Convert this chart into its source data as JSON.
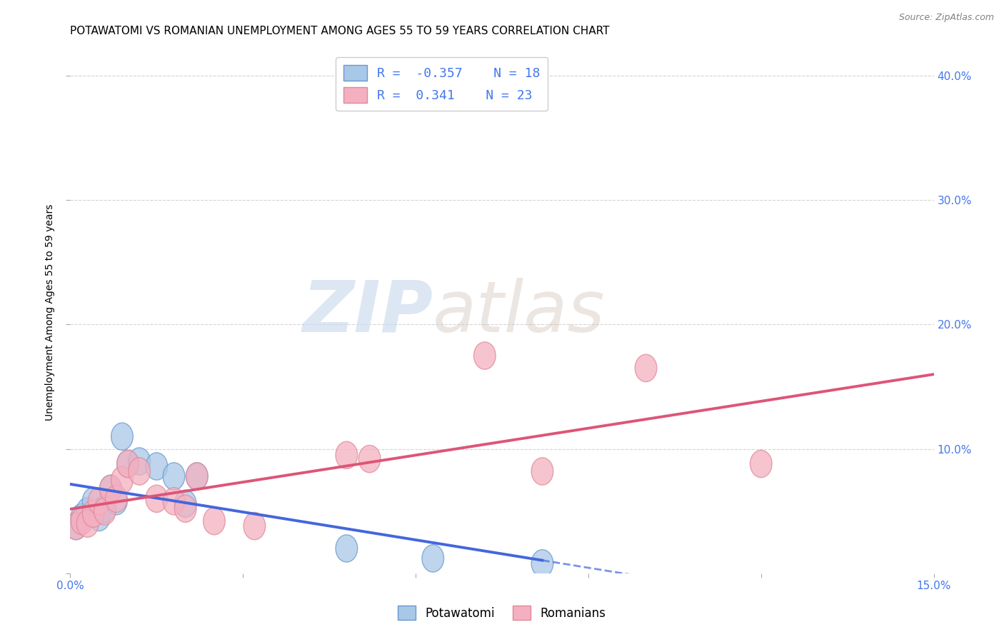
{
  "title": "POTAWATOMI VS ROMANIAN UNEMPLOYMENT AMONG AGES 55 TO 59 YEARS CORRELATION CHART",
  "source": "Source: ZipAtlas.com",
  "ylabel": "Unemployment Among Ages 55 to 59 years",
  "xlim": [
    0.0,
    0.15
  ],
  "ylim": [
    0.0,
    0.42
  ],
  "xtick_positions": [
    0.0,
    0.03,
    0.06,
    0.09,
    0.12,
    0.15
  ],
  "xtick_show": [
    0.0,
    0.15
  ],
  "xticklabels_show": [
    "0.0%",
    "15.0%"
  ],
  "yticks_right": [
    0.1,
    0.2,
    0.3,
    0.4
  ],
  "yticklabels_right": [
    "10.0%",
    "20.0%",
    "30.0%",
    "40.0%"
  ],
  "potawatomi_color": "#a8c8e8",
  "potawatomi_edge_color": "#6699cc",
  "romanian_color": "#f4b0c0",
  "romanian_edge_color": "#e08898",
  "trend_blue_color": "#4466dd",
  "trend_pink_color": "#dd5577",
  "R_potawatomi": -0.357,
  "N_potawatomi": 18,
  "R_romanian": 0.341,
  "N_romanian": 23,
  "potawatomi_x": [
    0.001,
    0.002,
    0.003,
    0.004,
    0.005,
    0.006,
    0.007,
    0.008,
    0.009,
    0.01,
    0.012,
    0.015,
    0.018,
    0.02,
    0.022,
    0.048,
    0.063,
    0.082
  ],
  "potawatomi_y": [
    0.038,
    0.045,
    0.05,
    0.058,
    0.045,
    0.052,
    0.068,
    0.058,
    0.11,
    0.088,
    0.09,
    0.086,
    0.078,
    0.056,
    0.078,
    0.02,
    0.012,
    0.008
  ],
  "romanian_x": [
    0.001,
    0.002,
    0.003,
    0.004,
    0.005,
    0.006,
    0.007,
    0.008,
    0.009,
    0.01,
    0.012,
    0.015,
    0.018,
    0.02,
    0.022,
    0.025,
    0.032,
    0.048,
    0.052,
    0.072,
    0.082,
    0.1,
    0.12
  ],
  "romanian_y": [
    0.038,
    0.042,
    0.04,
    0.048,
    0.058,
    0.05,
    0.068,
    0.06,
    0.075,
    0.088,
    0.082,
    0.06,
    0.058,
    0.052,
    0.078,
    0.042,
    0.038,
    0.095,
    0.092,
    0.175,
    0.082,
    0.165,
    0.088
  ],
  "watermark_zip": "ZIP",
  "watermark_atlas": "atlas",
  "background_color": "#ffffff",
  "grid_color": "#d0d0d0",
  "title_fontsize": 11,
  "axis_label_fontsize": 10,
  "tick_fontsize": 11,
  "legend_fontsize": 13
}
